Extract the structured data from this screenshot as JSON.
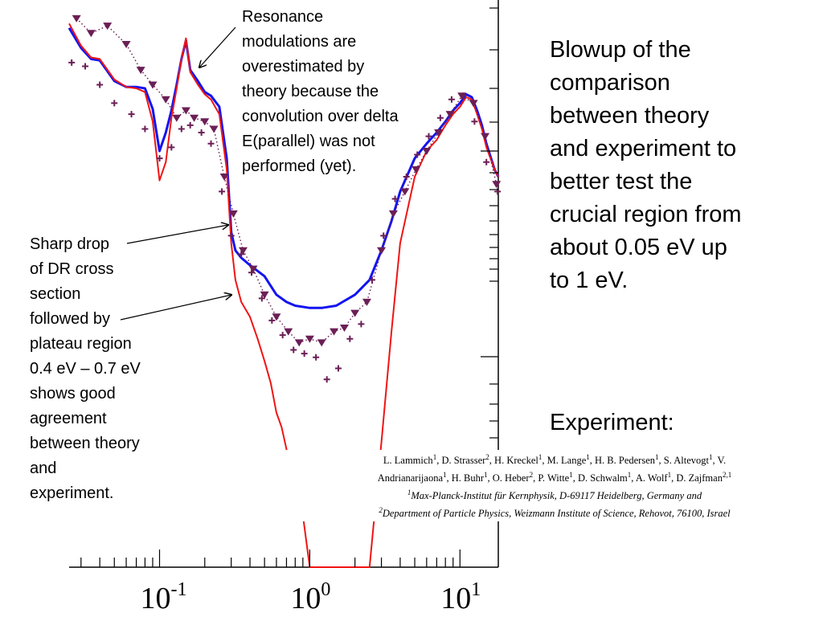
{
  "chart_data": {
    "type": "line",
    "title": "",
    "xlabel": "",
    "ylabel": "",
    "x_scale": "log",
    "xlim": [
      0.025,
      18
    ],
    "x_tick_labels": [
      "10-1",
      "100",
      "101"
    ],
    "x_tick_values": [
      0.1,
      1,
      10
    ],
    "colors": {
      "theory_blue": "#1414f0",
      "theory_red": "#f01414",
      "experiment": "#6b1f55"
    },
    "series": [
      {
        "style": "line-blue",
        "x": [
          0.025,
          0.03,
          0.035,
          0.04,
          0.05,
          0.06,
          0.07,
          0.08,
          0.09,
          0.1,
          0.11,
          0.12,
          0.13,
          0.14,
          0.15,
          0.16,
          0.18,
          0.2,
          0.22,
          0.25,
          0.28,
          0.3,
          0.32,
          0.35,
          0.4,
          0.5,
          0.6,
          0.7,
          0.8,
          1.0,
          1.2,
          1.5,
          2.0,
          2.5,
          3.0,
          3.5,
          4.0,
          5.0,
          6.0,
          7.0,
          8.0,
          9.0,
          10.0,
          11.0,
          12.0,
          13.0,
          14.0,
          15.0,
          17.0,
          18.0
        ],
        "y": [
          -0.18,
          -0.45,
          -0.6,
          -0.62,
          -0.9,
          -0.98,
          -0.98,
          -1.0,
          -1.28,
          -1.85,
          -1.6,
          -1.3,
          -0.95,
          -0.6,
          -0.35,
          -0.75,
          -0.9,
          -1.05,
          -1.1,
          -1.25,
          -1.95,
          -2.95,
          -3.2,
          -3.3,
          -3.4,
          -3.55,
          -3.8,
          -3.9,
          -3.95,
          -3.98,
          -3.98,
          -3.95,
          -3.8,
          -3.6,
          -3.2,
          -2.8,
          -2.4,
          -1.95,
          -1.75,
          -1.6,
          -1.45,
          -1.3,
          -1.2,
          -1.08,
          -1.12,
          -1.3,
          -1.5,
          -1.75,
          -2.1,
          -2.2
        ]
      },
      {
        "style": "line-red",
        "x": [
          0.025,
          0.03,
          0.035,
          0.04,
          0.05,
          0.06,
          0.07,
          0.08,
          0.09,
          0.1,
          0.11,
          0.12,
          0.13,
          0.14,
          0.15,
          0.16,
          0.18,
          0.2,
          0.22,
          0.25,
          0.28,
          0.3,
          0.32,
          0.35,
          0.4,
          0.45,
          0.5,
          0.55,
          0.6,
          0.65,
          0.7,
          0.75,
          0.8,
          0.9,
          1.0,
          2.5,
          3.0,
          3.5,
          4.0,
          5.0,
          6.0,
          7.0,
          8.0,
          9.0,
          10.0,
          11.0,
          12.0,
          13.0,
          14.0,
          15.0,
          17.0,
          18.0
        ],
        "y": [
          -0.12,
          -0.42,
          -0.58,
          -0.6,
          -0.88,
          -0.98,
          -1.0,
          -1.05,
          -1.45,
          -2.25,
          -2.0,
          -1.4,
          -1.0,
          -0.6,
          -0.32,
          -0.78,
          -0.95,
          -1.08,
          -1.15,
          -1.35,
          -2.1,
          -3.1,
          -3.6,
          -3.9,
          -4.1,
          -4.4,
          -4.7,
          -5.0,
          -5.4,
          -5.6,
          -5.9,
          -6.1,
          -6.3,
          -6.8,
          -7.5,
          -7.5,
          -5.8,
          -4.3,
          -3.1,
          -2.2,
          -1.85,
          -1.7,
          -1.5,
          -1.35,
          -1.25,
          -1.12,
          -1.15,
          -1.35,
          -1.55,
          -1.8,
          -2.1,
          -2.2
        ]
      },
      {
        "style": "markers-triangle",
        "x": [
          0.028,
          0.035,
          0.045,
          0.06,
          0.075,
          0.09,
          0.11,
          0.13,
          0.15,
          0.17,
          0.2,
          0.23,
          0.27,
          0.31,
          0.36,
          0.42,
          0.5,
          0.6,
          0.72,
          0.85,
          1.0,
          1.2,
          1.45,
          1.7,
          2.0,
          2.4,
          3.0,
          3.6,
          4.3,
          5.1,
          6.0,
          7.2,
          8.6,
          10.3,
          12.3,
          14.7,
          17.5
        ],
        "y": [
          -0.05,
          -0.25,
          -0.15,
          -0.4,
          -0.75,
          -0.95,
          -1.15,
          -1.4,
          -1.3,
          -1.4,
          -1.45,
          -1.55,
          -2.2,
          -2.7,
          -3.2,
          -3.45,
          -3.8,
          -4.1,
          -4.3,
          -4.45,
          -4.4,
          -4.45,
          -4.3,
          -4.25,
          -4.05,
          -3.9,
          -3.2,
          -2.7,
          -2.4,
          -2.1,
          -1.85,
          -1.6,
          -1.35,
          -1.1,
          -1.2,
          -1.65,
          -2.3
        ]
      },
      {
        "style": "markers-plus",
        "x": [
          0.026,
          0.032,
          0.04,
          0.05,
          0.065,
          0.08,
          0.1,
          0.12,
          0.14,
          0.16,
          0.19,
          0.22,
          0.26,
          0.3,
          0.35,
          0.41,
          0.48,
          0.56,
          0.66,
          0.78,
          0.92,
          1.1,
          1.3,
          1.55,
          1.85,
          2.2,
          2.6,
          3.1,
          3.7,
          4.4,
          5.2,
          6.2,
          7.4,
          8.8,
          10.5,
          12.5,
          15.0,
          17.8
        ],
        "y": [
          -0.65,
          -0.7,
          -0.95,
          -1.2,
          -1.35,
          -1.55,
          -1.95,
          -1.8,
          -1.55,
          -1.5,
          -1.6,
          -1.75,
          -2.4,
          -3.0,
          -3.25,
          -3.5,
          -3.85,
          -4.15,
          -4.35,
          -4.55,
          -4.6,
          -4.65,
          -4.95,
          -4.8,
          -4.4,
          -4.2,
          -3.6,
          -3.0,
          -2.5,
          -2.2,
          -1.9,
          -1.65,
          -1.4,
          -1.15,
          -1.1,
          -1.45,
          -2.0,
          -2.4
        ]
      }
    ]
  },
  "annotations": {
    "resonance": "Resonance\nmodulations are\noverestimated by\ntheory because the\nconvolution over delta\nE(parallel) was not\nperformed (yet).",
    "drop": "Sharp drop\nof DR cross\nsection\nfollowed by\nplateau region\n0.4 eV – 0.7 eV\nshows good\nagreement\nbetween theory\nand\nexperiment."
  },
  "sidebar": {
    "blowup": "Blowup of the\ncomparison\nbetween theory\nand experiment to\nbetter test the\ncrucial region from\nabout 0.05 eV up\nto 1 eV.",
    "experiment_heading": "Experiment:"
  },
  "reference": {
    "authors_line1_parts": [
      "L. Lammich",
      "1",
      ", D. Strasser",
      "2",
      ", H. Kreckel",
      "1",
      ", M. Lange",
      "1",
      ", H. B. Pedersen",
      "1",
      ", S. Altevogt",
      "1",
      ", V."
    ],
    "authors_line2_parts": [
      "Andrianarijaona",
      "1",
      ", H. Buhr",
      "1",
      ", O. Heber",
      "2",
      ", P. Witte",
      "1",
      ", D. Schwalm",
      "1",
      ", A. Wolf",
      "1",
      ", D. Zajfman",
      "2,1",
      ""
    ],
    "affil1_sup": "1",
    "affil1": "Max-Planck-Institut für Kernphysik, D-69117 Heidelberg, Germany and",
    "affil2_sup": "2",
    "affil2": "Department of Particle Physics, Weizmann Institute of Science, Rehovot, 76100, Israel"
  }
}
